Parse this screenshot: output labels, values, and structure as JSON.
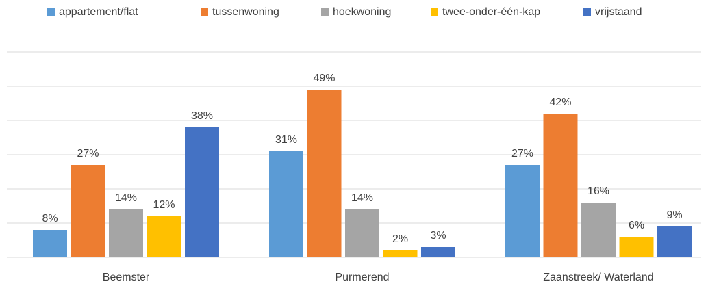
{
  "chart_data": {
    "type": "bar",
    "categories": [
      "Beemster",
      "Purmerend",
      "Zaanstreek/ Waterland"
    ],
    "series": [
      {
        "name": "appartement/flat",
        "color": "#5b9bd5",
        "values": [
          8,
          31,
          27
        ],
        "value_labels": [
          "8%",
          "31%",
          "27%"
        ]
      },
      {
        "name": "tussenwoning",
        "color": "#ed7d31",
        "values": [
          27,
          49,
          42
        ],
        "value_labels": [
          "27%",
          "49%",
          "42%"
        ]
      },
      {
        "name": "hoekwoning",
        "color": "#a5a5a5",
        "values": [
          14,
          14,
          16
        ],
        "value_labels": [
          "14%",
          "14%",
          "16%"
        ]
      },
      {
        "name": "twee-onder-één-kap",
        "color": "#ffc000",
        "values": [
          12,
          2,
          6
        ],
        "value_labels": [
          "12%",
          "2%",
          "6%"
        ]
      },
      {
        "name": "vrijstaand",
        "color": "#4472c4",
        "values": [
          38,
          3,
          9
        ],
        "value_labels": [
          "38%",
          "3%",
          "9%"
        ]
      }
    ],
    "ylim": [
      0,
      60
    ],
    "yticks": [
      0,
      10,
      20,
      30,
      40,
      50,
      60
    ],
    "grid": true,
    "legend": "top"
  }
}
